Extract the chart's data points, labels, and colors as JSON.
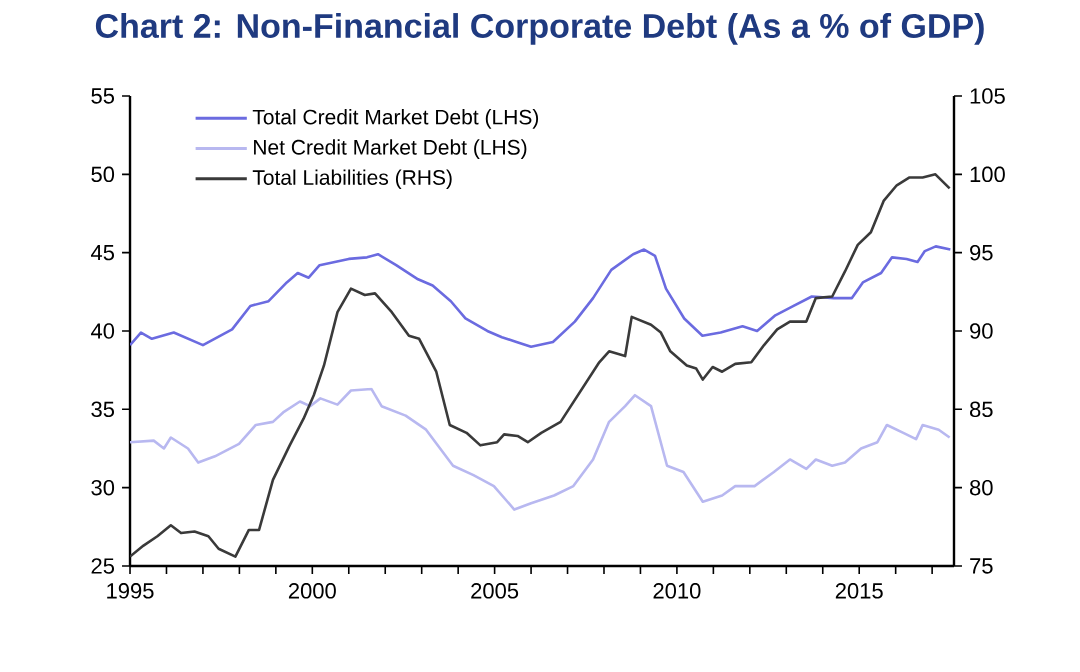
{
  "chart_data": {
    "type": "line",
    "title": "Chart 2: Non-Financial Corporate Debt (As a % of GDP)",
    "xlim": [
      1995,
      2017.6
    ],
    "xticks": [
      1995,
      {
        "value": 1996,
        "label": null
      },
      {
        "value": 1997,
        "label": null
      },
      {
        "value": 1998,
        "label": null
      },
      {
        "value": 1999,
        "label": null
      },
      2000,
      {
        "value": 2001,
        "label": null
      },
      {
        "value": 2002,
        "label": null
      },
      {
        "value": 2003,
        "label": null
      },
      {
        "value": 2004,
        "label": null
      },
      2005,
      {
        "value": 2006,
        "label": null
      },
      {
        "value": 2007,
        "label": null
      },
      {
        "value": 2008,
        "label": null
      },
      {
        "value": 2009,
        "label": null
      },
      2010,
      {
        "value": 2011,
        "label": null
      },
      {
        "value": 2012,
        "label": null
      },
      {
        "value": 2013,
        "label": null
      },
      {
        "value": 2014,
        "label": null
      },
      2015,
      {
        "value": 2016,
        "label": null
      },
      {
        "value": 2017,
        "label": null
      }
    ],
    "ylim": [
      25,
      55
    ],
    "yticks": [
      25,
      30,
      35,
      40,
      45,
      50,
      55
    ],
    "y2lim": [
      75,
      105
    ],
    "y2ticks": [
      75,
      80,
      85,
      90,
      95,
      100,
      105
    ],
    "grid": false,
    "legend": "top left",
    "marker": "none",
    "line_style": "solid",
    "series": [
      {
        "name": "Total Credit Market Debt (LHS)",
        "color": "#6b6be0",
        "x": [
          1995.0,
          1995.3,
          1995.6,
          1996.2,
          1997.0,
          1997.8,
          1998.3,
          1998.8,
          1999.3,
          1999.6,
          1999.9,
          2000.2,
          2001.0,
          2001.5,
          2001.8,
          2002.3,
          2002.9,
          2003.3,
          2003.8,
          2004.2,
          2004.8,
          2005.2,
          2005.6,
          2006.0,
          2006.6,
          2007.2,
          2007.7,
          2008.2,
          2008.8,
          2009.1,
          2009.4,
          2009.7,
          2010.2,
          2010.7,
          2011.2,
          2011.8,
          2012.2,
          2012.7,
          2013.2,
          2013.7,
          2014.3,
          2014.8,
          2015.1,
          2015.6,
          2015.9,
          2016.3,
          2016.6,
          2016.8,
          2017.1,
          2017.5
        ],
        "values": [
          39.1,
          39.9,
          39.5,
          39.9,
          39.1,
          40.1,
          41.6,
          41.9,
          43.1,
          43.7,
          43.4,
          44.2,
          44.6,
          44.7,
          44.9,
          44.2,
          43.3,
          42.9,
          41.9,
          40.8,
          40.0,
          39.6,
          39.3,
          39.0,
          39.3,
          40.6,
          42.1,
          43.9,
          44.9,
          45.2,
          44.8,
          42.7,
          40.8,
          39.7,
          39.9,
          40.3,
          40.0,
          41.0,
          41.6,
          42.2,
          42.1,
          42.1,
          43.1,
          43.7,
          44.7,
          44.6,
          44.4,
          45.1,
          45.4,
          45.2
        ]
      },
      {
        "name": "Net Credit Market Debt (LHS)",
        "color": "#b8b8f0",
        "x": [
          1995.0,
          1995.65,
          1995.93,
          1996.12,
          1996.59,
          1996.87,
          1997.33,
          1997.99,
          1998.45,
          1998.92,
          1999.2,
          1999.66,
          1999.94,
          2000.22,
          2000.69,
          2001.06,
          2001.62,
          2001.9,
          2002.56,
          2003.12,
          2003.86,
          2004.42,
          2004.98,
          2005.54,
          2006.0,
          2006.63,
          2007.16,
          2007.7,
          2008.14,
          2008.58,
          2008.85,
          2009.29,
          2009.73,
          2010.18,
          2010.71,
          2011.24,
          2011.6,
          2012.13,
          2012.66,
          2013.1,
          2013.55,
          2013.81,
          2014.26,
          2014.61,
          2015.05,
          2015.5,
          2015.76,
          2016.21,
          2016.56,
          2016.74,
          2017.18,
          2017.48
        ],
        "values": [
          32.9,
          33.0,
          32.5,
          33.2,
          32.5,
          31.6,
          32.0,
          32.8,
          34.0,
          34.2,
          34.8,
          35.5,
          35.2,
          35.7,
          35.3,
          36.2,
          36.3,
          35.2,
          34.6,
          33.7,
          31.4,
          30.8,
          30.1,
          28.6,
          29.0,
          29.5,
          30.1,
          31.8,
          34.2,
          35.2,
          35.9,
          35.2,
          31.4,
          31.0,
          29.1,
          29.5,
          30.1,
          30.1,
          31.0,
          31.8,
          31.2,
          31.8,
          31.4,
          31.6,
          32.5,
          32.9,
          34.0,
          33.5,
          33.1,
          34.0,
          33.7,
          33.2
        ]
      },
      {
        "name": "Total Liabilities (RHS)",
        "color": "#3a3a3a",
        "axis": "y2",
        "x": [
          1995.0,
          1995.37,
          1995.75,
          1996.12,
          1996.4,
          1996.77,
          1997.15,
          1997.43,
          1997.89,
          1998.26,
          1998.54,
          1998.92,
          1999.38,
          1999.76,
          2000.04,
          2000.32,
          2000.69,
          2001.06,
          2001.44,
          2001.72,
          2002.18,
          2002.65,
          2002.93,
          2003.4,
          2003.77,
          2004.23,
          2004.61,
          2005.07,
          2005.26,
          2005.63,
          2005.91,
          2006.28,
          2006.81,
          2007.34,
          2007.87,
          2008.14,
          2008.58,
          2008.76,
          2009.29,
          2009.56,
          2009.82,
          2010.27,
          2010.53,
          2010.71,
          2010.98,
          2011.24,
          2011.6,
          2012.04,
          2012.39,
          2012.75,
          2013.1,
          2013.55,
          2013.81,
          2014.26,
          2014.61,
          2014.96,
          2015.32,
          2015.67,
          2016.03,
          2016.38,
          2016.74,
          2017.09,
          2017.48
        ],
        "values": [
          75.6,
          76.3,
          76.9,
          77.6,
          77.1,
          77.2,
          76.9,
          76.1,
          75.6,
          77.3,
          77.3,
          80.5,
          82.7,
          84.4,
          85.9,
          87.8,
          91.2,
          92.7,
          92.3,
          92.4,
          91.2,
          89.7,
          89.5,
          87.4,
          84.0,
          83.5,
          82.7,
          82.9,
          83.4,
          83.3,
          82.9,
          83.5,
          84.2,
          86.1,
          88.0,
          88.7,
          88.4,
          90.9,
          90.4,
          89.9,
          88.7,
          87.8,
          87.6,
          86.9,
          87.7,
          87.4,
          87.9,
          88.0,
          89.1,
          90.1,
          90.6,
          90.6,
          92.1,
          92.2,
          93.8,
          95.5,
          96.3,
          98.3,
          99.3,
          99.8,
          99.8,
          100.0,
          99.1
        ]
      }
    ]
  }
}
